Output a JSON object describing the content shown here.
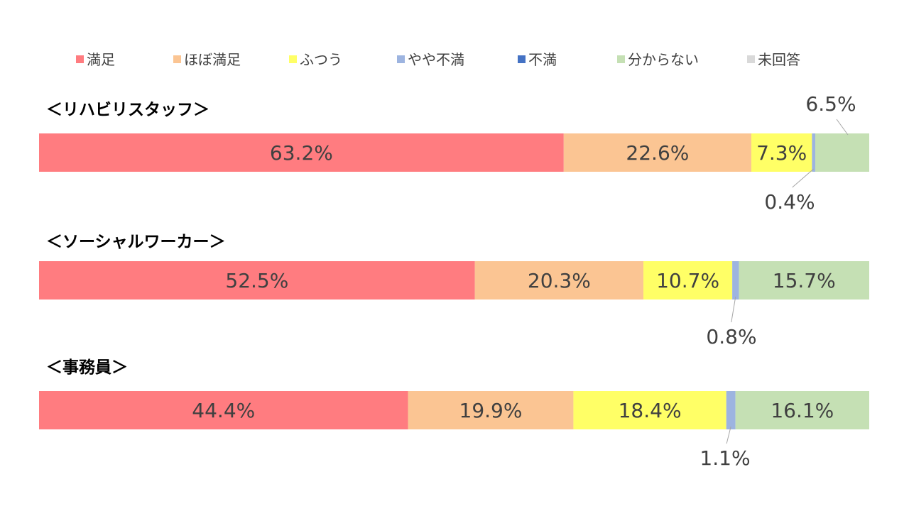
{
  "chart_data": {
    "type": "bar",
    "orientation": "horizontal",
    "stacked": "100%",
    "legend_position": "top",
    "grid": false,
    "categories": [
      "満足",
      "ほぼ満足",
      "ふつう",
      "やや不満",
      "不満",
      "分からない",
      "未回答"
    ],
    "colors": [
      "#ff7c80",
      "#fbc593",
      "#ffff66",
      "#9db4e0",
      "#4472c4",
      "#c5e0b4",
      "#d9d9d9"
    ],
    "groups": [
      {
        "title": "＜リハビリスタッフ＞",
        "values": [
          63.2,
          22.6,
          7.3,
          0.4,
          0,
          6.5,
          0
        ],
        "labels": [
          "63.2%",
          "22.6%",
          "7.3%",
          "0.4%",
          "",
          "6.5%",
          ""
        ]
      },
      {
        "title": "＜ソーシャルワーカー＞",
        "values": [
          52.5,
          20.3,
          10.7,
          0.8,
          0,
          15.7,
          0
        ],
        "labels": [
          "52.5%",
          "20.3%",
          "10.7%",
          "0.8%",
          "",
          "15.7%",
          ""
        ]
      },
      {
        "title": "＜事務員＞",
        "values": [
          44.4,
          19.9,
          18.4,
          1.1,
          0,
          16.1,
          0
        ],
        "labels": [
          "44.4%",
          "19.9%",
          "18.4%",
          "1.1%",
          "",
          "16.1%",
          ""
        ]
      }
    ]
  }
}
